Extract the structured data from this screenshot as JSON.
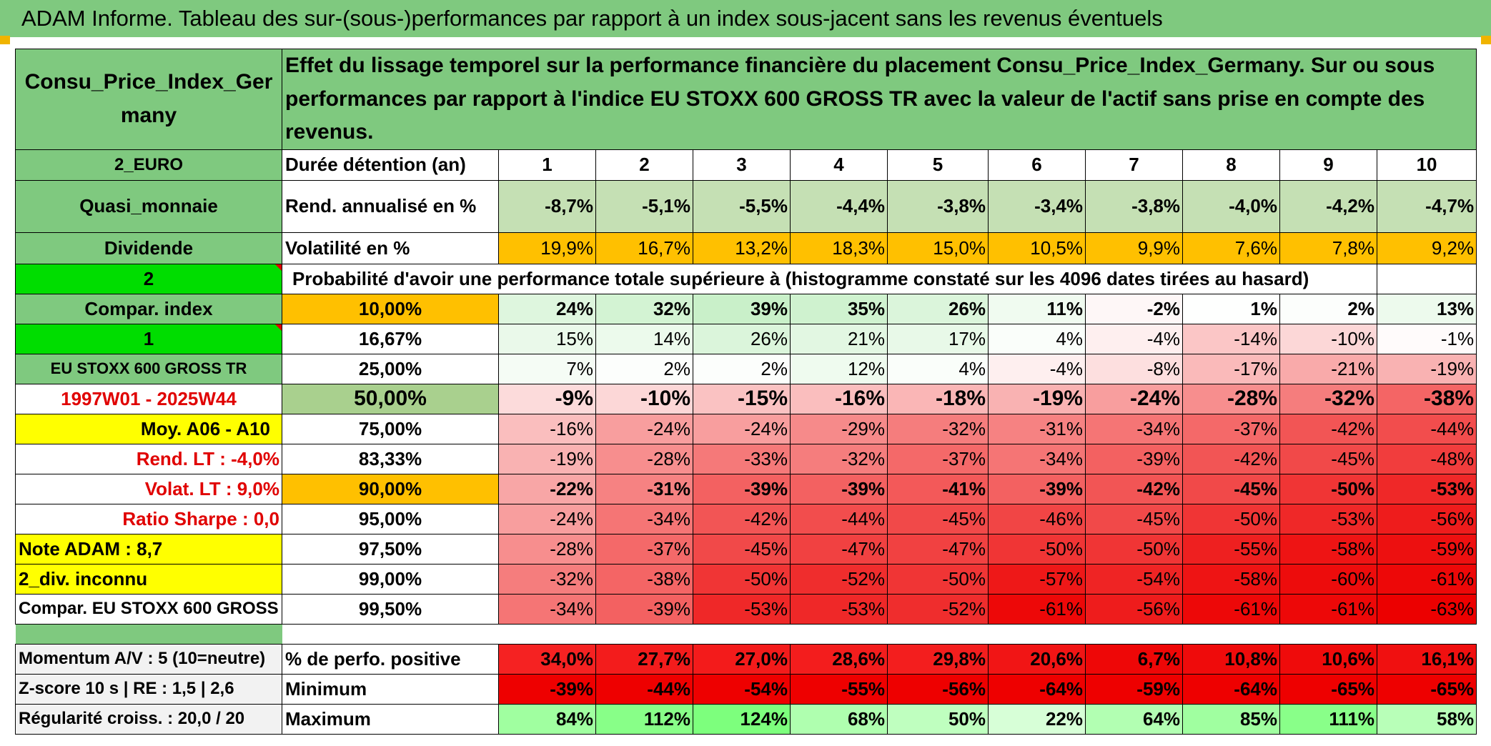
{
  "title": "ADAM Informe. Tableau des sur-(sous-)performances par rapport à un index sous-jacent sans les revenus éventuels",
  "header": {
    "asset": "Consu_Price_Index_Germany",
    "description": "Effet du lissage temporel sur la performance financière du placement Consu_Price_Index_Germany. Sur ou sous performances par rapport à l'indice EU STOXX 600 GROSS TR avec la valeur de l'actif sans prise en compte des revenus."
  },
  "left": {
    "currency": "2_EURO",
    "category": "Quasi_monnaie",
    "dividend": "Dividende",
    "code2": "2",
    "compar_index": "Compar. index",
    "code1": "1",
    "index_name": "EU STOXX 600 GROSS TR",
    "period": "1997W01 - 2025W44",
    "moy": "Moy. A06 - A10",
    "rend_lt": "Rend. LT :    -4,0%",
    "volat_lt": "Volat. LT :   9,0%",
    "sharpe": "Ratio Sharpe :    0,0",
    "note": "Note ADAM : 8,7",
    "div": "2_div. inconnu",
    "compar": "Compar. EU STOXX 600 GROSS TR",
    "momentum": "Momentum A/V : 5 (10=neutre)",
    "zscore": "Z-score 10 s | RE : 1,5 | 2,6",
    "regularite": "Régularité croiss. : 20,0 / 20"
  },
  "labels": {
    "duree": "Durée détention (an)",
    "rend": "Rend. annualisé en %",
    "vol": "Volatilité en %",
    "proba": "Probabilité d'avoir une performance totale supérieure à (histogramme constaté sur les 4096 dates tirées au hasard)",
    "positive": "% de perfo. positive",
    "minimum": "Minimum",
    "maximum": "Maximum"
  },
  "years": [
    "1",
    "2",
    "3",
    "4",
    "5",
    "6",
    "7",
    "8",
    "9",
    "10"
  ],
  "rend": [
    "-8,7%",
    "-5,1%",
    "-5,5%",
    "-4,4%",
    "-3,8%",
    "-3,4%",
    "-3,8%",
    "-4,0%",
    "-4,2%",
    "-4,7%"
  ],
  "vol": [
    "19,9%",
    "16,7%",
    "13,2%",
    "18,3%",
    "15,0%",
    "10,5%",
    "9,9%",
    "7,6%",
    "7,8%",
    "9,2%"
  ],
  "percentiles": [
    {
      "p": "10,00%",
      "v": [
        "24%",
        "32%",
        "39%",
        "35%",
        "26%",
        "11%",
        "-2%",
        "1%",
        "2%",
        "13%"
      ]
    },
    {
      "p": "16,67%",
      "v": [
        "15%",
        "14%",
        "26%",
        "21%",
        "17%",
        "4%",
        "-4%",
        "-14%",
        "-10%",
        "-1%"
      ]
    },
    {
      "p": "25,00%",
      "v": [
        "7%",
        "2%",
        "2%",
        "12%",
        "4%",
        "-4%",
        "-8%",
        "-17%",
        "-21%",
        "-19%"
      ]
    },
    {
      "p": "50,00%",
      "v": [
        "-9%",
        "-10%",
        "-15%",
        "-16%",
        "-18%",
        "-19%",
        "-24%",
        "-28%",
        "-32%",
        "-38%"
      ]
    },
    {
      "p": "75,00%",
      "v": [
        "-16%",
        "-24%",
        "-24%",
        "-29%",
        "-32%",
        "-31%",
        "-34%",
        "-37%",
        "-42%",
        "-44%"
      ]
    },
    {
      "p": "83,33%",
      "v": [
        "-19%",
        "-28%",
        "-33%",
        "-32%",
        "-37%",
        "-34%",
        "-39%",
        "-42%",
        "-45%",
        "-48%"
      ]
    },
    {
      "p": "90,00%",
      "v": [
        "-22%",
        "-31%",
        "-39%",
        "-39%",
        "-41%",
        "-39%",
        "-42%",
        "-45%",
        "-50%",
        "-53%"
      ]
    },
    {
      "p": "95,00%",
      "v": [
        "-24%",
        "-34%",
        "-42%",
        "-44%",
        "-45%",
        "-46%",
        "-45%",
        "-50%",
        "-53%",
        "-56%"
      ]
    },
    {
      "p": "97,50%",
      "v": [
        "-28%",
        "-37%",
        "-45%",
        "-47%",
        "-47%",
        "-50%",
        "-50%",
        "-55%",
        "-58%",
        "-59%"
      ]
    },
    {
      "p": "99,00%",
      "v": [
        "-32%",
        "-38%",
        "-50%",
        "-52%",
        "-50%",
        "-57%",
        "-54%",
        "-58%",
        "-60%",
        "-61%"
      ]
    },
    {
      "p": "99,50%",
      "v": [
        "-34%",
        "-39%",
        "-53%",
        "-53%",
        "-52%",
        "-61%",
        "-56%",
        "-61%",
        "-61%",
        "-63%"
      ]
    }
  ],
  "positive": [
    "34,0%",
    "27,7%",
    "27,0%",
    "28,6%",
    "29,8%",
    "20,6%",
    "6,7%",
    "10,8%",
    "10,6%",
    "16,1%"
  ],
  "minimum": [
    "-39%",
    "-44%",
    "-54%",
    "-55%",
    "-56%",
    "-64%",
    "-59%",
    "-64%",
    "-65%",
    "-65%"
  ],
  "maximum": [
    "84%",
    "112%",
    "124%",
    "68%",
    "50%",
    "22%",
    "64%",
    "85%",
    "111%",
    "58%"
  ],
  "colors": {
    "header_green": "#7fc97f",
    "light_green": "#c5e0b4",
    "bright_green": "#00dd00",
    "yellow": "#ffff00",
    "orange": "#ffc000",
    "red_text": "#e00000"
  }
}
